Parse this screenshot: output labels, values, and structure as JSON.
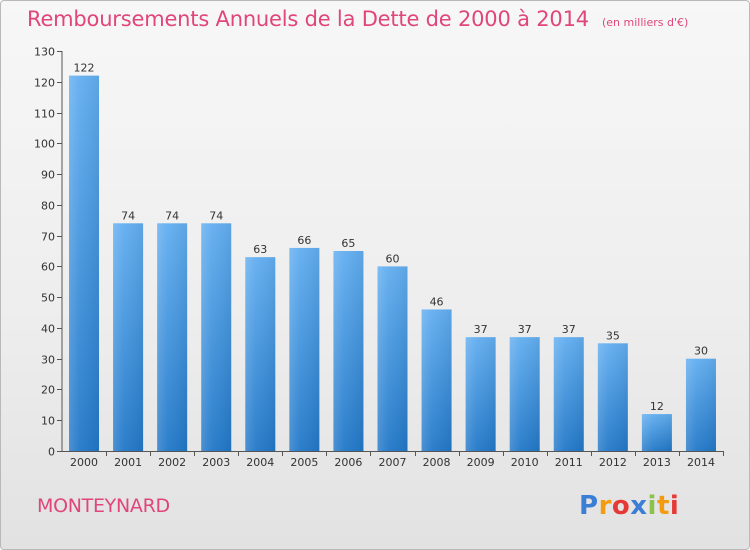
{
  "header": {
    "title": "Remboursements Annuels de la Dette de 2000 à 2014",
    "unit": "(en milliers d'€)"
  },
  "footer": {
    "commune": "MONTEYNARD",
    "logo_letters": [
      "P",
      "r",
      "o",
      "x",
      "i",
      "t",
      "i"
    ],
    "logo_colors": [
      "#3a7fd5",
      "#f39c12",
      "#e53935",
      "#3a7fd5",
      "#8bc34a",
      "#f39c12",
      "#e53935"
    ]
  },
  "colors": {
    "bar_light": "#62aef0",
    "bar_dark": "#2278c8",
    "title": "#e0457b"
  },
  "chart_data": {
    "type": "bar",
    "categories": [
      "2000",
      "2001",
      "2002",
      "2003",
      "2004",
      "2005",
      "2006",
      "2007",
      "2008",
      "2009",
      "2010",
      "2011",
      "2012",
      "2013",
      "2014"
    ],
    "values": [
      122,
      74,
      74,
      74,
      63,
      66,
      65,
      60,
      46,
      37,
      37,
      37,
      35,
      12,
      30
    ],
    "title": "Remboursements Annuels de la Dette de 2000 à 2014",
    "ylim": [
      0,
      130
    ],
    "yticks": [
      0,
      10,
      20,
      30,
      40,
      50,
      60,
      70,
      80,
      90,
      100,
      110,
      120,
      130
    ],
    "grid": false,
    "data_labels": true
  }
}
